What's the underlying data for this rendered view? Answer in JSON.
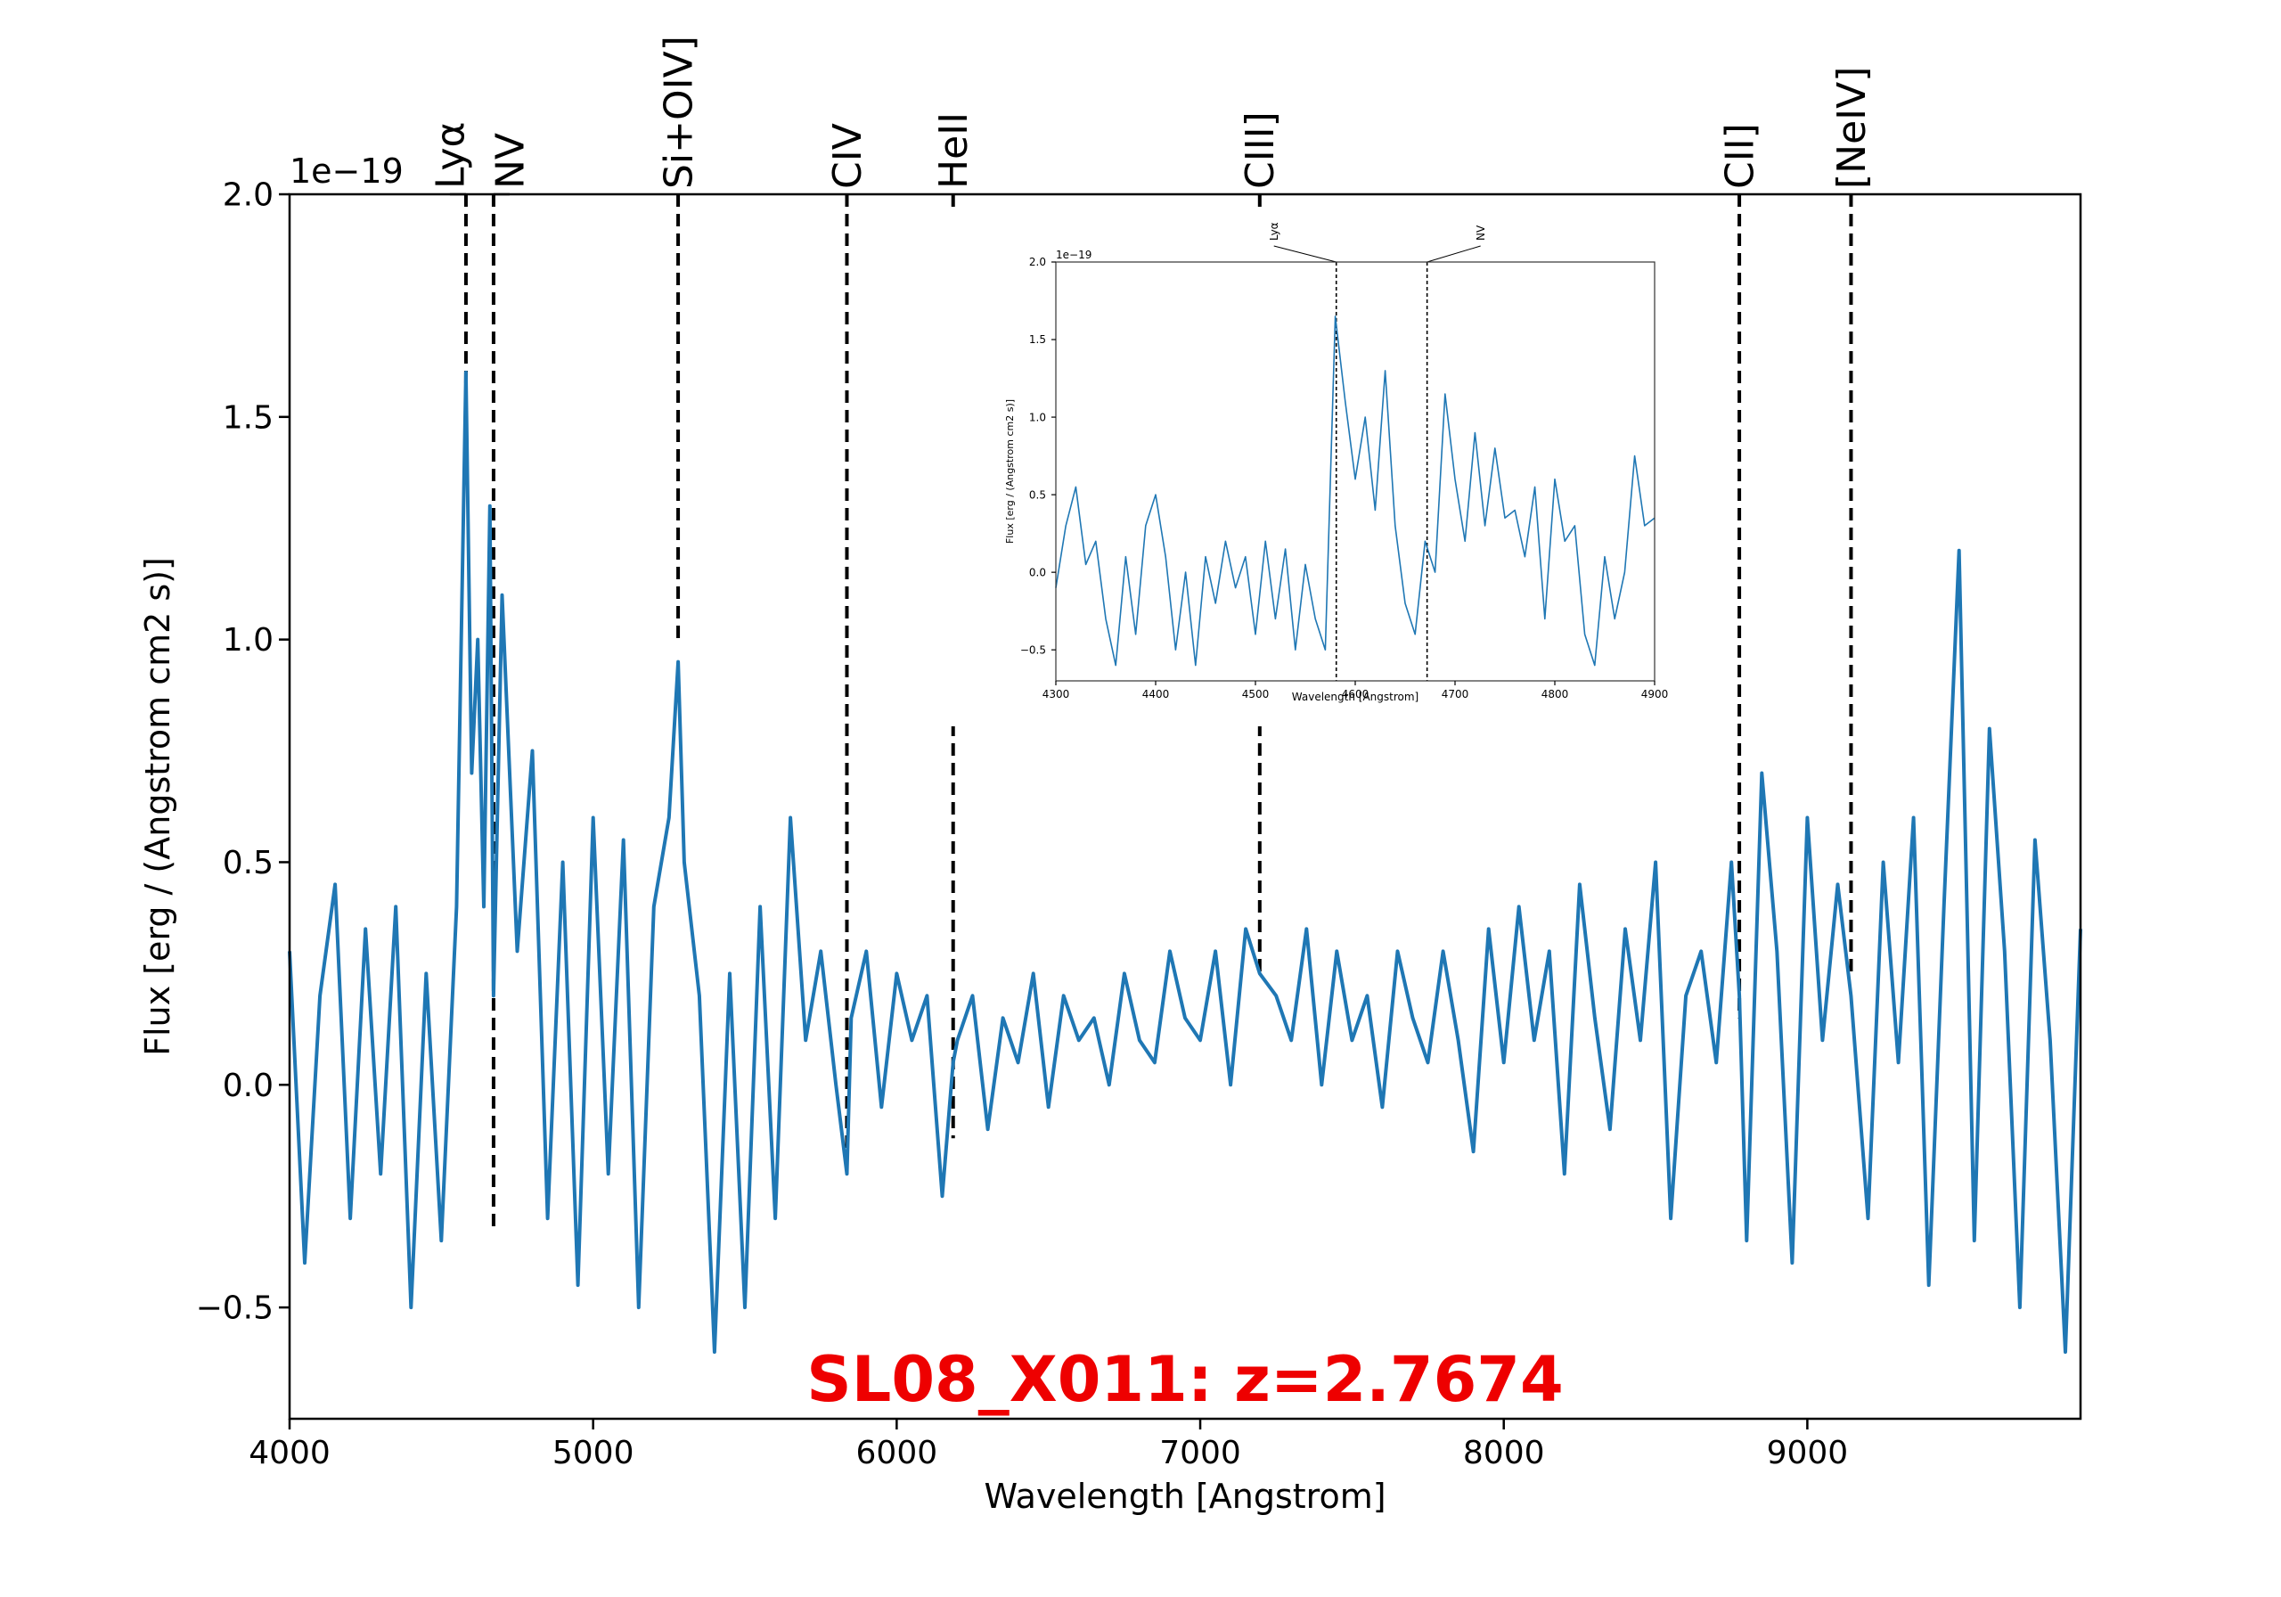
{
  "chart_data": [
    {
      "type": "line",
      "role": "main",
      "xlabel": "Wavelength [Angstrom]",
      "ylabel": "Flux [erg / (Angstrom cm2 s)]",
      "y_offset_label": "1e−19",
      "xlim": [
        4000,
        9900
      ],
      "ylim": [
        -0.75,
        2.0
      ],
      "x_ticks": [
        4000,
        5000,
        6000,
        7000,
        8000,
        9000
      ],
      "x_tick_labels": [
        "4000",
        "5000",
        "6000",
        "7000",
        "8000",
        "9000"
      ],
      "y_ticks": [
        -0.5,
        0.0,
        0.5,
        1.0,
        1.5,
        2.0
      ],
      "y_tick_labels": [
        "−0.5",
        "0.0",
        "0.5",
        "1.0",
        "1.5",
        "2.0"
      ],
      "grid": false,
      "annotation": "SL08_X011: z=2.7674",
      "line_color": "#1f77b4",
      "annotation_color": "#ee0000",
      "emission_lines": [
        {
          "label": "Lyα",
          "x": 4581,
          "bottom": 1.5
        },
        {
          "label": "NV",
          "x": 4672,
          "bottom": -0.33
        },
        {
          "label": "Si+OIV]",
          "x": 5280,
          "bottom": 1.0
        },
        {
          "label": "CIV",
          "x": 5836,
          "bottom": -0.2
        },
        {
          "label": "HeII",
          "x": 6186,
          "bottom": -0.12
        },
        {
          "label": "CIII]",
          "x": 7196,
          "bottom": 0.25
        },
        {
          "label": "CII]",
          "x": 8776,
          "bottom": 0.15
        },
        {
          "label": "[NeIV]",
          "x": 9144,
          "bottom": 0.25
        }
      ],
      "series": [
        {
          "x": [
            4000,
            4050,
            4100,
            4150,
            4200,
            4250,
            4300,
            4350,
            4400,
            4450,
            4500,
            4550,
            4581,
            4600,
            4620,
            4640,
            4660,
            4672,
            4700,
            4750,
            4800,
            4850,
            4900,
            4950,
            5000,
            5050,
            5100,
            5150,
            5200,
            5250,
            5280,
            5300,
            5350,
            5400,
            5450,
            5500,
            5550,
            5600,
            5650,
            5700,
            5750,
            5800,
            5836,
            5850,
            5900,
            5950,
            6000,
            6050,
            6100,
            6150,
            6186,
            6200,
            6250,
            6300,
            6350,
            6400,
            6450,
            6500,
            6550,
            6600,
            6650,
            6700,
            6750,
            6800,
            6850,
            6900,
            6950,
            7000,
            7050,
            7100,
            7150,
            7196,
            7250,
            7300,
            7350,
            7400,
            7450,
            7500,
            7550,
            7600,
            7650,
            7700,
            7750,
            7800,
            7850,
            7900,
            7950,
            8000,
            8050,
            8100,
            8150,
            8200,
            8250,
            8300,
            8350,
            8400,
            8450,
            8500,
            8550,
            8600,
            8650,
            8700,
            8750,
            8776,
            8800,
            8850,
            8900,
            8950,
            9000,
            9050,
            9100,
            9144,
            9200,
            9250,
            9300,
            9350,
            9400,
            9450,
            9500,
            9550,
            9600,
            9650,
            9700,
            9750,
            9800,
            9850,
            9900
          ],
          "y": [
            0.3,
            -0.4,
            0.2,
            0.45,
            -0.3,
            0.35,
            -0.2,
            0.4,
            -0.5,
            0.25,
            -0.35,
            0.4,
            1.6,
            0.7,
            1.0,
            0.4,
            1.3,
            0.2,
            1.1,
            0.3,
            0.75,
            -0.3,
            0.5,
            -0.45,
            0.6,
            -0.2,
            0.55,
            -0.5,
            0.4,
            0.6,
            0.95,
            0.5,
            0.2,
            -0.6,
            0.25,
            -0.5,
            0.4,
            -0.3,
            0.6,
            0.1,
            0.3,
            0.0,
            -0.2,
            0.15,
            0.3,
            -0.05,
            0.25,
            0.1,
            0.2,
            -0.25,
            0.05,
            0.1,
            0.2,
            -0.1,
            0.15,
            0.05,
            0.25,
            -0.05,
            0.2,
            0.1,
            0.15,
            0.0,
            0.25,
            0.1,
            0.05,
            0.3,
            0.15,
            0.1,
            0.3,
            0.0,
            0.35,
            0.25,
            0.2,
            0.1,
            0.35,
            0.0,
            0.3,
            0.1,
            0.2,
            -0.05,
            0.3,
            0.15,
            0.05,
            0.3,
            0.1,
            -0.15,
            0.35,
            0.05,
            0.4,
            0.1,
            0.3,
            -0.2,
            0.45,
            0.15,
            -0.1,
            0.35,
            0.1,
            0.5,
            -0.3,
            0.2,
            0.3,
            0.05,
            0.5,
            0.2,
            -0.35,
            0.7,
            0.3,
            -0.4,
            0.6,
            0.1,
            0.45,
            0.2,
            -0.3,
            0.5,
            0.05,
            0.6,
            -0.45,
            0.4,
            1.2,
            -0.35,
            0.8,
            0.3,
            -0.5,
            0.55,
            0.1,
            -0.6,
            0.35
          ]
        }
      ]
    },
    {
      "type": "line",
      "role": "inset",
      "xlabel": "Wavelength [Angstrom]",
      "ylabel": "Flux [erg / (Angstrom cm2 s)]",
      "y_offset_label": "1e−19",
      "xlim": [
        4300,
        4900
      ],
      "ylim": [
        -0.7,
        2.0
      ],
      "x_ticks": [
        4300,
        4400,
        4500,
        4600,
        4700,
        4800,
        4900
      ],
      "x_tick_labels": [
        "4300",
        "4400",
        "4500",
        "4600",
        "4700",
        "4800",
        "4900"
      ],
      "y_ticks": [
        -0.5,
        0.0,
        0.5,
        1.0,
        1.5,
        2.0
      ],
      "y_tick_labels": [
        "−0.5",
        "0.0",
        "0.5",
        "1.0",
        "1.5",
        "2.0"
      ],
      "grid": false,
      "emission_lines": [
        {
          "label": "Lyα",
          "x": 4581
        },
        {
          "label": "NV",
          "x": 4672
        }
      ],
      "series": [
        {
          "x": [
            4300,
            4310,
            4320,
            4330,
            4340,
            4350,
            4360,
            4370,
            4380,
            4390,
            4400,
            4410,
            4420,
            4430,
            4440,
            4450,
            4460,
            4470,
            4480,
            4490,
            4500,
            4510,
            4520,
            4530,
            4540,
            4550,
            4560,
            4570,
            4580,
            4590,
            4600,
            4610,
            4620,
            4630,
            4640,
            4650,
            4660,
            4670,
            4680,
            4690,
            4700,
            4710,
            4720,
            4730,
            4740,
            4750,
            4760,
            4770,
            4780,
            4790,
            4800,
            4810,
            4820,
            4830,
            4840,
            4850,
            4860,
            4870,
            4880,
            4890,
            4900
          ],
          "y": [
            -0.1,
            0.3,
            0.55,
            0.05,
            0.2,
            -0.3,
            -0.6,
            0.1,
            -0.4,
            0.3,
            0.5,
            0.1,
            -0.5,
            0.0,
            -0.6,
            0.1,
            -0.2,
            0.2,
            -0.1,
            0.1,
            -0.4,
            0.2,
            -0.3,
            0.15,
            -0.5,
            0.05,
            -0.3,
            -0.5,
            1.65,
            1.1,
            0.6,
            1.0,
            0.4,
            1.3,
            0.3,
            -0.2,
            -0.4,
            0.2,
            0.0,
            1.15,
            0.6,
            0.2,
            0.9,
            0.3,
            0.8,
            0.35,
            0.4,
            0.1,
            0.55,
            -0.3,
            0.6,
            0.2,
            0.3,
            -0.4,
            -0.6,
            0.1,
            -0.3,
            0.0,
            0.75,
            0.3,
            0.35
          ]
        }
      ]
    }
  ]
}
